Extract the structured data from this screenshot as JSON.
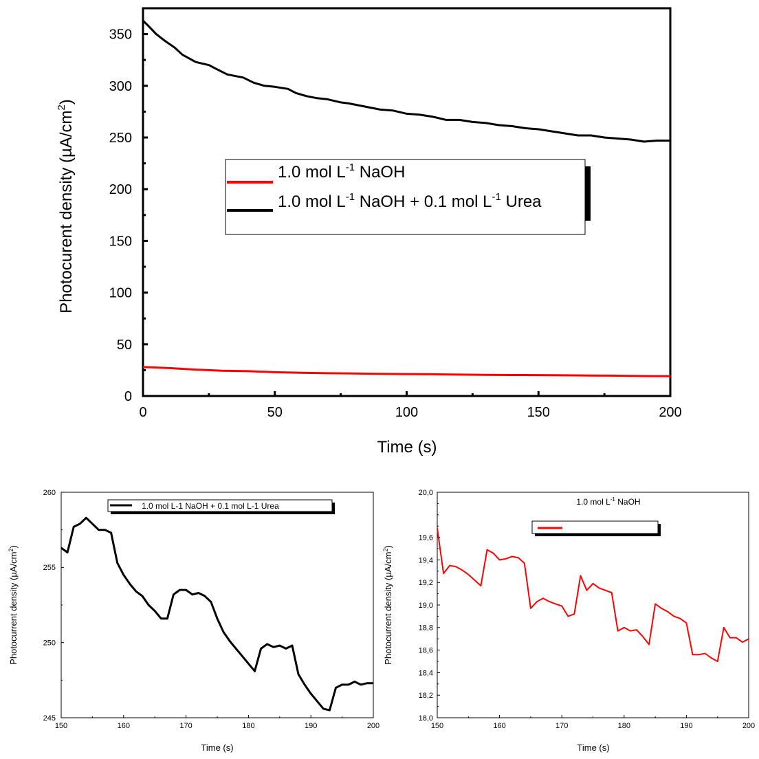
{
  "chart_data": [
    {
      "type": "line",
      "xlabel": "Time (s)",
      "ylabel_main": "Photocurent density (µA/cm",
      "ylabel_sup": "2",
      "ylabel_tail": ")",
      "xlim": [
        0,
        200
      ],
      "ylim": [
        0,
        375
      ],
      "x_ticks": [
        "0",
        "50",
        "100",
        "150",
        "200"
      ],
      "y_ticks": [
        "0",
        "50",
        "100",
        "150",
        "200",
        "250",
        "300",
        "350"
      ],
      "legend": {
        "placement": "center-right",
        "entries": [
          {
            "pre": "1.0 mol L",
            "sup": "-1",
            "post": " NaOH",
            "color": "#ff0000"
          },
          {
            "pre": "1.0 mol L",
            "sup": "-1",
            "mid": " NaOH + 0.1 mol L",
            "sup2": "-1",
            "post": " Urea",
            "color": "#000000"
          }
        ]
      },
      "series": [
        {
          "name": "1.0 mol L-1 NaOH",
          "color": "#ff0000",
          "x": [
            0,
            10,
            20,
            30,
            40,
            50,
            60,
            70,
            80,
            90,
            100,
            110,
            120,
            130,
            140,
            150,
            160,
            170,
            180,
            190,
            200
          ],
          "y": [
            28,
            27,
            25.5,
            24.5,
            24,
            23,
            22.5,
            22,
            21.8,
            21.5,
            21.2,
            21,
            20.7,
            20.5,
            20.3,
            20.2,
            20,
            19.8,
            19.6,
            19.3,
            19.2
          ]
        },
        {
          "name": "1.0 mol L-1 NaOH + 0.1 mol L-1 Urea",
          "color": "#000000",
          "x": [
            0,
            2,
            5,
            8,
            12,
            15,
            20,
            25,
            28,
            32,
            38,
            42,
            46,
            50,
            55,
            58,
            62,
            66,
            70,
            75,
            78,
            82,
            86,
            90,
            95,
            100,
            105,
            110,
            115,
            120,
            125,
            130,
            135,
            140,
            145,
            150,
            155,
            160,
            165,
            170,
            175,
            180,
            185,
            190,
            195,
            200
          ],
          "y": [
            363,
            358,
            350,
            344,
            337,
            330,
            323,
            320,
            316,
            311,
            308,
            303,
            300,
            299,
            297,
            293,
            290,
            288,
            287,
            284,
            283,
            281,
            279,
            277,
            276,
            273,
            272,
            270,
            267,
            267,
            265,
            264,
            262,
            261,
            259,
            258,
            256,
            254,
            252,
            252,
            250,
            249,
            248,
            246,
            247,
            247
          ]
        }
      ]
    },
    {
      "type": "line",
      "xlabel": "Time (s)",
      "ylabel_main": "Photocurrent density (µA/cm",
      "ylabel_sup": "2",
      "ylabel_tail": ")",
      "xlim": [
        150,
        200
      ],
      "ylim": [
        245,
        260
      ],
      "x_ticks": [
        "150",
        "160",
        "170",
        "180",
        "190",
        "200"
      ],
      "y_ticks": [
        "245",
        "250",
        "255",
        "260"
      ],
      "legend": {
        "placement": "top-right",
        "entries": [
          {
            "label": "1.0 mol L-1 NaOH + 0.1 mol L-1 Urea",
            "color": "#000000"
          }
        ]
      },
      "series": [
        {
          "name": "1.0 mol L-1 NaOH + 0.1 mol L-1 Urea",
          "color": "#000000",
          "x": [
            150,
            151,
            152,
            153,
            154,
            155,
            156,
            157,
            158,
            159,
            160,
            161,
            162,
            163,
            164,
            165,
            166,
            167,
            168,
            169,
            170,
            171,
            172,
            173,
            174,
            175,
            176,
            177,
            178,
            179,
            180,
            181,
            182,
            183,
            184,
            185,
            186,
            187,
            188,
            189,
            190,
            191,
            192,
            193,
            194,
            195,
            196,
            197,
            198,
            199,
            200
          ],
          "y": [
            256.3,
            256.0,
            257.7,
            257.9,
            258.3,
            257.9,
            257.5,
            257.5,
            257.3,
            255.3,
            254.5,
            253.9,
            253.4,
            253.1,
            252.5,
            252.1,
            251.6,
            251.6,
            253.2,
            253.5,
            253.5,
            253.2,
            253.3,
            253.1,
            252.7,
            251.6,
            250.7,
            250.1,
            249.6,
            249.1,
            248.6,
            248.1,
            249.6,
            249.9,
            249.7,
            249.8,
            249.6,
            249.8,
            247.9,
            247.2,
            246.6,
            246.1,
            245.6,
            245.5,
            247.0,
            247.2,
            247.2,
            247.4,
            247.2,
            247.3,
            247.3
          ]
        }
      ]
    },
    {
      "type": "line",
      "title_pre": "1.0 mol L",
      "title_sup": "-1",
      "title_post": " NaOH",
      "xlabel": "Time (s)",
      "ylabel_main": "Photocurrent density (µA/cm",
      "ylabel_sup": "2",
      "ylabel_tail": ")",
      "xlim": [
        150,
        200
      ],
      "ylim": [
        18.0,
        20.0
      ],
      "x_ticks": [
        "150",
        "160",
        "170",
        "180",
        "190",
        "200"
      ],
      "y_ticks": [
        "18,0",
        "18,2",
        "18,4",
        "18,6",
        "18,8",
        "19,0",
        "19,2",
        "19,4",
        "19,6",
        "20,0"
      ],
      "legend": {
        "placement": "top-center",
        "entries": [
          {
            "label": "",
            "color": "#ff0000"
          }
        ]
      },
      "series": [
        {
          "name": "1.0 mol L-1 NaOH",
          "color": "#ff0000",
          "x": [
            150,
            151,
            152,
            153,
            154,
            155,
            156,
            157,
            158,
            159,
            160,
            161,
            162,
            163,
            164,
            165,
            166,
            167,
            168,
            169,
            170,
            171,
            172,
            173,
            174,
            175,
            176,
            177,
            178,
            179,
            180,
            181,
            182,
            183,
            184,
            185,
            186,
            187,
            188,
            189,
            190,
            191,
            192,
            193,
            194,
            195,
            196,
            197,
            198,
            199,
            200
          ],
          "y": [
            19.68,
            19.28,
            19.35,
            19.34,
            19.31,
            19.27,
            19.22,
            19.17,
            19.49,
            19.46,
            19.4,
            19.41,
            19.43,
            19.42,
            19.37,
            18.97,
            19.03,
            19.06,
            19.03,
            19.01,
            18.99,
            18.9,
            18.92,
            19.26,
            19.13,
            19.19,
            19.15,
            19.13,
            19.11,
            18.77,
            18.8,
            18.77,
            18.78,
            18.72,
            18.65,
            19.01,
            18.97,
            18.94,
            18.9,
            18.88,
            18.84,
            18.56,
            18.56,
            18.57,
            18.53,
            18.5,
            18.8,
            18.71,
            18.71,
            18.67,
            18.7
          ]
        }
      ]
    }
  ]
}
